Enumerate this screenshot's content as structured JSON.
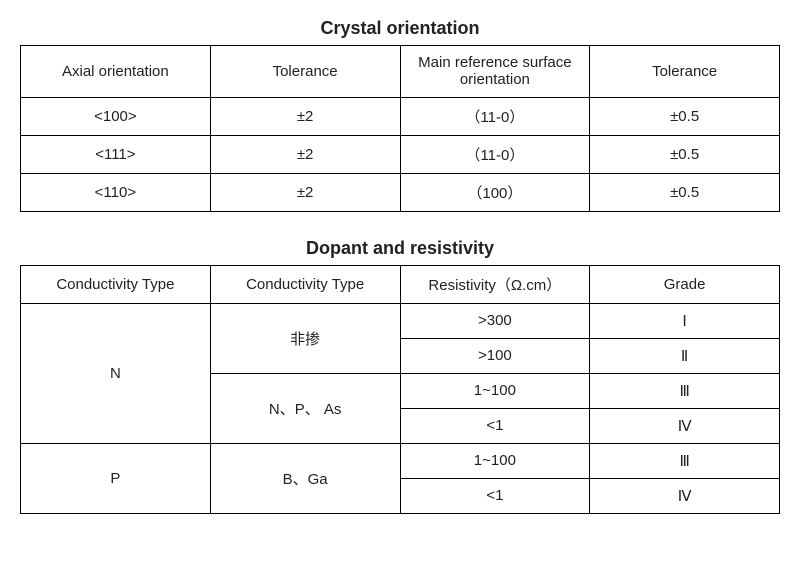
{
  "crystal": {
    "title": "Crystal orientation",
    "columns": [
      "Axial orientation",
      "Tolerance",
      "Main reference surface orientation",
      "Tolerance"
    ],
    "rows": [
      [
        "<100>",
        "±2",
        "（11-0）",
        "±0.5"
      ],
      [
        "<111>",
        "±2",
        "（11-0）",
        "±0.5"
      ],
      [
        "<110>",
        "±2",
        "（100）",
        "±0.5"
      ]
    ]
  },
  "dopant": {
    "title": "Dopant and resistivity",
    "columns": [
      "Conductivity Type",
      "Conductivity Type",
      "Resistivity（Ω.cm）",
      "Grade"
    ],
    "n_label": "N",
    "n_dopant1": "非掺",
    "n_dopant2": "N、P、 As",
    "n_rows": [
      [
        ">300",
        "Ⅰ"
      ],
      [
        ">100",
        "Ⅱ"
      ],
      [
        "1~100",
        "Ⅲ"
      ],
      [
        "<1",
        "Ⅳ"
      ]
    ],
    "p_label": "P",
    "p_dopant": "B、Ga",
    "p_rows": [
      [
        "1~100",
        "Ⅲ"
      ],
      [
        "<1",
        "Ⅳ"
      ]
    ]
  }
}
